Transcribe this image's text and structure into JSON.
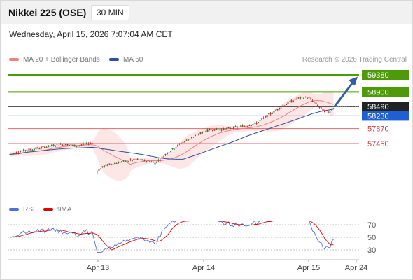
{
  "header": {
    "title": "Nikkei 225 (OSE)",
    "timeframe": "30 MIN"
  },
  "timestamp": "Wednesday, April 15, 2026 7:07:04 AM CET",
  "legend": [
    {
      "label": "MA 20 + Bollinger Bands",
      "color": "#f08080"
    },
    {
      "label": "MA 50",
      "color": "#2e4f9c"
    }
  ],
  "credit": "Research © 2026 Trading Central",
  "rsi_legend": [
    {
      "label": "RSI",
      "color": "#4f6fd8"
    },
    {
      "label": "9MA",
      "color": "#e00000"
    }
  ],
  "chart_data": {
    "type": "candlestick",
    "y_range": [
      56150,
      59580
    ],
    "x_ticks": [
      "Apr 13",
      "Apr 14",
      "Apr 15",
      "Apr 24"
    ],
    "levels": [
      {
        "value": 59380,
        "label": "59380",
        "kind": "resistance",
        "color": "#4f9a0a"
      },
      {
        "value": 58900,
        "label": "58900",
        "kind": "resistance",
        "color": "#4f9a0a"
      },
      {
        "value": 58490,
        "label": "58490",
        "kind": "last",
        "color": "#222222"
      },
      {
        "value": 58230,
        "label": "58230",
        "kind": "pivot",
        "color": "#1f5fd6"
      },
      {
        "value": 57870,
        "label": "57870",
        "kind": "support",
        "color": "#d43a3a"
      },
      {
        "value": 57450,
        "label": "57450",
        "kind": "support",
        "color": "#d43a3a"
      }
    ],
    "colors": {
      "up": "#2e7d32",
      "down": "#c62828",
      "band": "#fde0e0",
      "ma20": "#f08080",
      "ma50": "#2e4f9c",
      "arrow": "#2d5fa8"
    },
    "rsi": {
      "levels": [
        70,
        50,
        30
      ],
      "range": [
        20,
        82
      ]
    }
  }
}
